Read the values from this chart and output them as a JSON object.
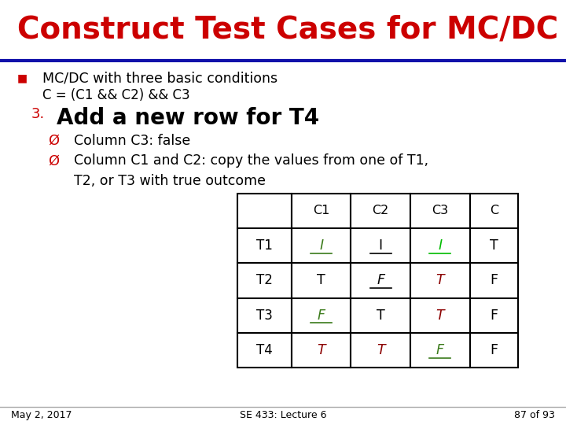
{
  "title": "Construct Test Cases for MC/DC",
  "title_color": "#CC0000",
  "title_fontsize": 28,
  "bg_color": "#FFFFFF",
  "bullet_square": "■",
  "bullet_text": "MC/DC with three basic conditions",
  "formula_text": "C = (C1 && C2) && C3",
  "step_number": "3.",
  "step_text": "Add a new row for T4",
  "bullet1": "Column C3: false",
  "bullet2_line1": "Column C1 and C2: copy the values from one of T1,",
  "bullet2_line2": "T2, or T3 with true outcome",
  "table_headers": [
    "",
    "C1",
    "C2",
    "C3",
    "C"
  ],
  "table_rows": [
    [
      "T1",
      "I",
      "I",
      "I",
      "T"
    ],
    [
      "T2",
      "T",
      "F",
      "T",
      "F"
    ],
    [
      "T3",
      "F",
      "T",
      "T",
      "F"
    ],
    [
      "T4",
      "T",
      "T",
      "F",
      "F"
    ]
  ],
  "cell_colors": [
    [
      "black",
      "green",
      "black",
      "ltgreen",
      "black"
    ],
    [
      "black",
      "black",
      "black_ul",
      "darkred",
      "black"
    ],
    [
      "black",
      "green",
      "black",
      "darkred",
      "black"
    ],
    [
      "black",
      "darkred",
      "darkred",
      "green",
      "black"
    ]
  ],
  "cell_underline": [
    [
      false,
      true,
      true,
      true,
      false
    ],
    [
      false,
      false,
      true,
      false,
      false
    ],
    [
      false,
      true,
      false,
      false,
      false
    ],
    [
      false,
      false,
      false,
      true,
      false
    ]
  ],
  "footer_left": "May 2, 2017",
  "footer_center": "SE 433: Lecture 6",
  "footer_right": "87 of 93",
  "red_color": "#CC0000",
  "darkred_color": "#8B0000",
  "green_color": "#3A7A1A",
  "ltgreen_color": "#00BB00",
  "black_color": "#000000",
  "separator_color": "#1111AA"
}
